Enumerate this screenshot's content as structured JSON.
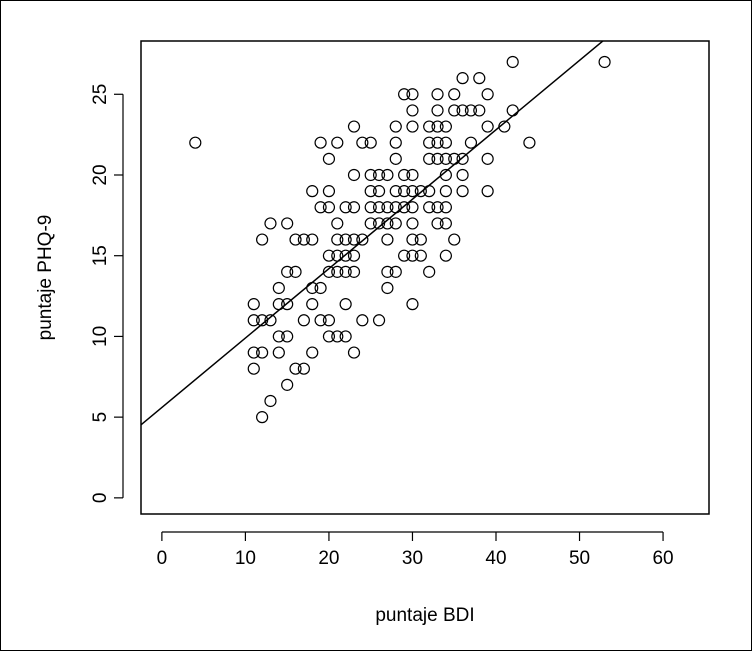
{
  "chart_data": {
    "type": "scatter",
    "title": "",
    "xlabel": "puntaje BDI",
    "ylabel": "puntaje PHQ-9",
    "xlim": [
      -2.5,
      65.5
    ],
    "ylim": [
      -1,
      28.3
    ],
    "xticks": [
      0,
      10,
      20,
      30,
      40,
      50,
      60
    ],
    "yticks": [
      0,
      5,
      10,
      15,
      20,
      25
    ],
    "grid": false,
    "regression_line": {
      "intercept": 5.6,
      "slope": 0.43
    },
    "points": [
      [
        4,
        22
      ],
      [
        11,
        12
      ],
      [
        11,
        11
      ],
      [
        11,
        9
      ],
      [
        11,
        8
      ],
      [
        12,
        16
      ],
      [
        12,
        11
      ],
      [
        12,
        9
      ],
      [
        12,
        5
      ],
      [
        13,
        17
      ],
      [
        13,
        11
      ],
      [
        13,
        6
      ],
      [
        14,
        13
      ],
      [
        14,
        12
      ],
      [
        14,
        10
      ],
      [
        14,
        9
      ],
      [
        15,
        17
      ],
      [
        15,
        14
      ],
      [
        15,
        12
      ],
      [
        15,
        10
      ],
      [
        15,
        7
      ],
      [
        16,
        16
      ],
      [
        16,
        14
      ],
      [
        16,
        8
      ],
      [
        17,
        16
      ],
      [
        17,
        11
      ],
      [
        17,
        8
      ],
      [
        18,
        19
      ],
      [
        18,
        16
      ],
      [
        18,
        13
      ],
      [
        18,
        12
      ],
      [
        18,
        9
      ],
      [
        19,
        22
      ],
      [
        19,
        18
      ],
      [
        19,
        13
      ],
      [
        19,
        11
      ],
      [
        20,
        21
      ],
      [
        20,
        19
      ],
      [
        20,
        18
      ],
      [
        20,
        15
      ],
      [
        20,
        14
      ],
      [
        20,
        11
      ],
      [
        20,
        10
      ],
      [
        21,
        22
      ],
      [
        21,
        17
      ],
      [
        21,
        16
      ],
      [
        21,
        15
      ],
      [
        21,
        14
      ],
      [
        21,
        10
      ],
      [
        22,
        18
      ],
      [
        22,
        16
      ],
      [
        22,
        15
      ],
      [
        22,
        14
      ],
      [
        22,
        12
      ],
      [
        22,
        10
      ],
      [
        23,
        23
      ],
      [
        23,
        20
      ],
      [
        23,
        18
      ],
      [
        23,
        16
      ],
      [
        23,
        15
      ],
      [
        23,
        14
      ],
      [
        23,
        9
      ],
      [
        24,
        22
      ],
      [
        24,
        16
      ],
      [
        24,
        11
      ],
      [
        25,
        22
      ],
      [
        25,
        20
      ],
      [
        25,
        19
      ],
      [
        25,
        18
      ],
      [
        25,
        17
      ],
      [
        26,
        20
      ],
      [
        26,
        19
      ],
      [
        26,
        18
      ],
      [
        26,
        17
      ],
      [
        26,
        11
      ],
      [
        27,
        20
      ],
      [
        27,
        18
      ],
      [
        27,
        17
      ],
      [
        27,
        16
      ],
      [
        27,
        14
      ],
      [
        27,
        13
      ],
      [
        28,
        23
      ],
      [
        28,
        22
      ],
      [
        28,
        21
      ],
      [
        28,
        19
      ],
      [
        28,
        18
      ],
      [
        28,
        17
      ],
      [
        28,
        14
      ],
      [
        29,
        25
      ],
      [
        29,
        20
      ],
      [
        29,
        19
      ],
      [
        29,
        18
      ],
      [
        29,
        15
      ],
      [
        30,
        25
      ],
      [
        30,
        24
      ],
      [
        30,
        23
      ],
      [
        30,
        20
      ],
      [
        30,
        19
      ],
      [
        30,
        18
      ],
      [
        30,
        17
      ],
      [
        30,
        16
      ],
      [
        30,
        15
      ],
      [
        30,
        12
      ],
      [
        31,
        19
      ],
      [
        31,
        16
      ],
      [
        31,
        15
      ],
      [
        32,
        23
      ],
      [
        32,
        22
      ],
      [
        32,
        21
      ],
      [
        32,
        19
      ],
      [
        32,
        18
      ],
      [
        32,
        14
      ],
      [
        33,
        25
      ],
      [
        33,
        24
      ],
      [
        33,
        23
      ],
      [
        33,
        22
      ],
      [
        33,
        21
      ],
      [
        33,
        18
      ],
      [
        33,
        17
      ],
      [
        34,
        23
      ],
      [
        34,
        22
      ],
      [
        34,
        21
      ],
      [
        34,
        20
      ],
      [
        34,
        19
      ],
      [
        34,
        18
      ],
      [
        34,
        17
      ],
      [
        34,
        15
      ],
      [
        35,
        25
      ],
      [
        35,
        24
      ],
      [
        35,
        21
      ],
      [
        35,
        16
      ],
      [
        36,
        26
      ],
      [
        36,
        24
      ],
      [
        36,
        21
      ],
      [
        36,
        20
      ],
      [
        36,
        19
      ],
      [
        37,
        24
      ],
      [
        37,
        22
      ],
      [
        38,
        26
      ],
      [
        38,
        24
      ],
      [
        39,
        25
      ],
      [
        39,
        23
      ],
      [
        39,
        21
      ],
      [
        39,
        19
      ],
      [
        41,
        23
      ],
      [
        42,
        27
      ],
      [
        42,
        24
      ],
      [
        44,
        22
      ],
      [
        53,
        27
      ]
    ]
  }
}
